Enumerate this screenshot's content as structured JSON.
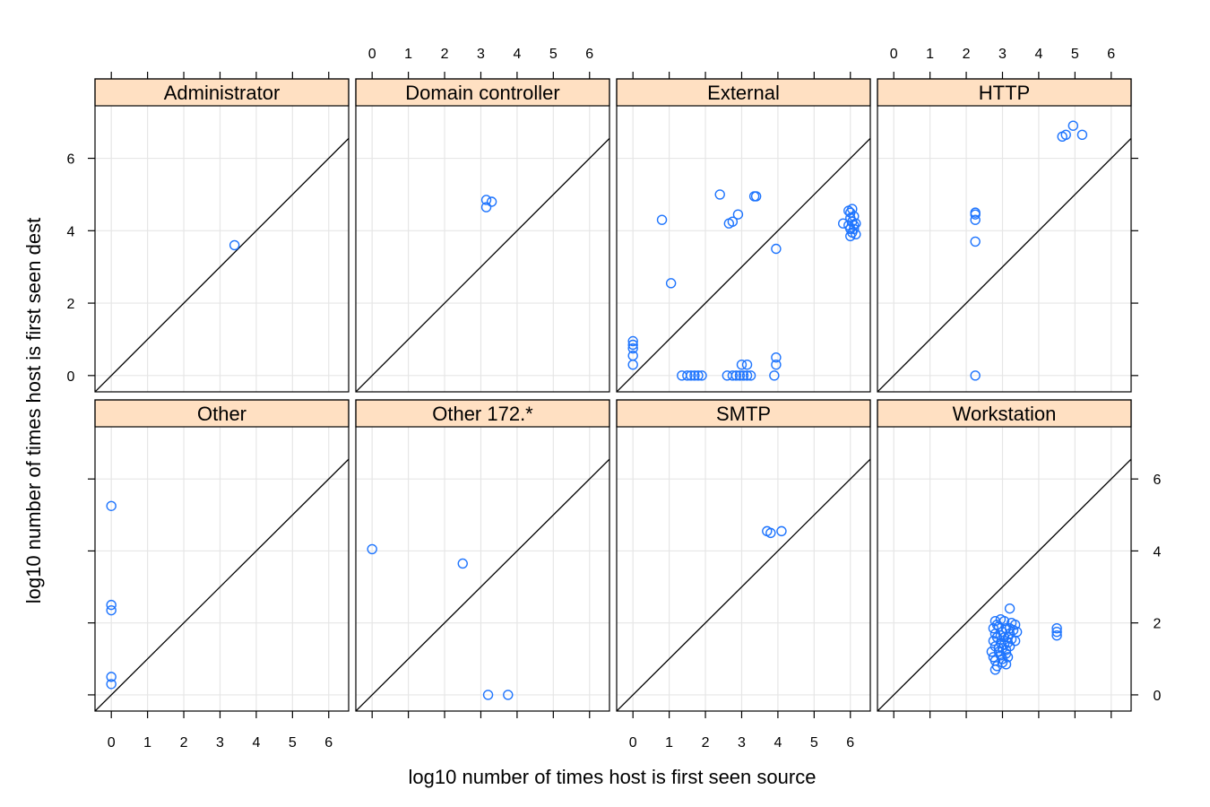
{
  "chart_data": {
    "type": "scatter",
    "xlabel": "log10 number of times host is first seen source",
    "ylabel": "log10 number of times host is first seen dest",
    "xlim": [
      -0.45,
      6.55
    ],
    "ylim": [
      -0.45,
      7.45
    ],
    "x_ticks": [
      0,
      1,
      2,
      3,
      4,
      5,
      6
    ],
    "y_ticks": [
      0,
      2,
      4,
      6
    ],
    "grid": true,
    "reference_line": "y = x",
    "strip_color": "#ffe0c2",
    "point_color": "#1f75fe",
    "line_color": "#000000",
    "grid_color": "#e6e6e6",
    "panels": [
      {
        "name": "Administrator",
        "points": [
          [
            3.4,
            3.6
          ]
        ]
      },
      {
        "name": "Domain controller",
        "points": [
          [
            3.15,
            4.85
          ],
          [
            3.3,
            4.8
          ],
          [
            3.15,
            4.65
          ]
        ]
      },
      {
        "name": "External",
        "points": [
          [
            0.8,
            4.3
          ],
          [
            1.05,
            2.55
          ],
          [
            2.4,
            5.0
          ],
          [
            2.65,
            4.2
          ],
          [
            2.75,
            4.25
          ],
          [
            2.9,
            4.45
          ],
          [
            3.35,
            4.95
          ],
          [
            3.4,
            4.95
          ],
          [
            3.95,
            3.5
          ],
          [
            5.8,
            4.2
          ],
          [
            5.95,
            4.55
          ],
          [
            6.0,
            4.5
          ],
          [
            6.05,
            4.6
          ],
          [
            6.1,
            4.4
          ],
          [
            6.0,
            4.35
          ],
          [
            6.05,
            4.25
          ],
          [
            5.95,
            4.15
          ],
          [
            6.1,
            4.15
          ],
          [
            6.15,
            4.2
          ],
          [
            6.0,
            4.05
          ],
          [
            6.1,
            4.05
          ],
          [
            6.05,
            3.95
          ],
          [
            6.15,
            3.9
          ],
          [
            6.0,
            3.85
          ],
          [
            0.0,
            0.95
          ],
          [
            0.0,
            0.85
          ],
          [
            0.0,
            0.75
          ],
          [
            0.0,
            0.55
          ],
          [
            0.0,
            0.3
          ],
          [
            1.35,
            0.0
          ],
          [
            1.5,
            0.0
          ],
          [
            1.6,
            0.0
          ],
          [
            1.7,
            0.0
          ],
          [
            1.8,
            0.0
          ],
          [
            1.9,
            0.0
          ],
          [
            2.6,
            0.0
          ],
          [
            2.75,
            0.0
          ],
          [
            2.85,
            0.0
          ],
          [
            2.95,
            0.0
          ],
          [
            3.05,
            0.0
          ],
          [
            3.15,
            0.0
          ],
          [
            3.25,
            0.0
          ],
          [
            3.0,
            0.3
          ],
          [
            3.15,
            0.3
          ],
          [
            3.9,
            0.0
          ],
          [
            3.95,
            0.3
          ],
          [
            3.95,
            0.5
          ]
        ]
      },
      {
        "name": "HTTP",
        "points": [
          [
            2.25,
            4.5
          ],
          [
            2.25,
            4.45
          ],
          [
            2.25,
            4.3
          ],
          [
            2.25,
            3.7
          ],
          [
            2.25,
            0.0
          ],
          [
            4.65,
            6.6
          ],
          [
            4.75,
            6.65
          ],
          [
            4.95,
            6.9
          ],
          [
            5.2,
            6.65
          ]
        ]
      },
      {
        "name": "Other",
        "points": [
          [
            0.0,
            5.25
          ],
          [
            0.0,
            2.5
          ],
          [
            0.0,
            2.35
          ],
          [
            0.0,
            0.5
          ],
          [
            0.0,
            0.3
          ]
        ]
      },
      {
        "name": "Other 172.*",
        "points": [
          [
            0.0,
            4.05
          ],
          [
            2.5,
            3.65
          ],
          [
            3.2,
            0.0
          ],
          [
            3.75,
            0.0
          ]
        ]
      },
      {
        "name": "SMTP",
        "points": [
          [
            3.7,
            4.55
          ],
          [
            3.8,
            4.5
          ],
          [
            4.1,
            4.55
          ]
        ]
      },
      {
        "name": "Workstation",
        "points": [
          [
            3.2,
            2.4
          ],
          [
            4.5,
            1.85
          ],
          [
            4.5,
            1.75
          ],
          [
            4.5,
            1.65
          ],
          [
            2.8,
            2.05
          ],
          [
            2.95,
            2.1
          ],
          [
            3.05,
            2.05
          ],
          [
            3.25,
            2.0
          ],
          [
            3.35,
            1.95
          ],
          [
            2.75,
            1.85
          ],
          [
            2.9,
            1.9
          ],
          [
            3.1,
            1.85
          ],
          [
            3.3,
            1.8
          ],
          [
            3.4,
            1.75
          ],
          [
            2.8,
            1.7
          ],
          [
            3.0,
            1.75
          ],
          [
            3.2,
            1.7
          ],
          [
            2.85,
            1.6
          ],
          [
            3.05,
            1.6
          ],
          [
            3.25,
            1.55
          ],
          [
            2.75,
            1.5
          ],
          [
            2.95,
            1.45
          ],
          [
            3.15,
            1.45
          ],
          [
            3.35,
            1.5
          ],
          [
            2.8,
            1.35
          ],
          [
            3.0,
            1.3
          ],
          [
            3.2,
            1.35
          ],
          [
            2.7,
            1.2
          ],
          [
            2.9,
            1.2
          ],
          [
            3.1,
            1.25
          ],
          [
            2.75,
            1.05
          ],
          [
            2.95,
            1.1
          ],
          [
            3.15,
            1.05
          ],
          [
            2.8,
            0.95
          ],
          [
            3.0,
            0.9
          ],
          [
            3.1,
            0.85
          ],
          [
            2.85,
            0.8
          ],
          [
            2.8,
            0.7
          ],
          [
            2.95,
            1.65
          ],
          [
            3.15,
            1.6
          ],
          [
            3.05,
            1.4
          ],
          [
            2.9,
            1.3
          ],
          [
            3.1,
            1.15
          ],
          [
            3.2,
            1.85
          ],
          [
            2.85,
            1.95
          ],
          [
            3.0,
            1.0
          ]
        ]
      }
    ]
  }
}
